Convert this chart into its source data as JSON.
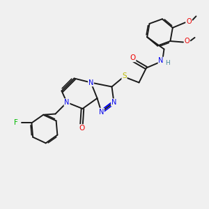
{
  "bg_color": "#f0f0f0",
  "bond_color": "#1a1a1a",
  "atom_colors": {
    "N": "#0000ee",
    "O": "#ee0000",
    "S": "#bbbb00",
    "F": "#00bb00",
    "H": "#448899",
    "C": "#1a1a1a"
  },
  "figsize": [
    3.0,
    3.0
  ],
  "dpi": 100,
  "lw": 1.4,
  "fs": 7.0,
  "xlim": [
    0,
    10
  ],
  "ylim": [
    0,
    10
  ]
}
